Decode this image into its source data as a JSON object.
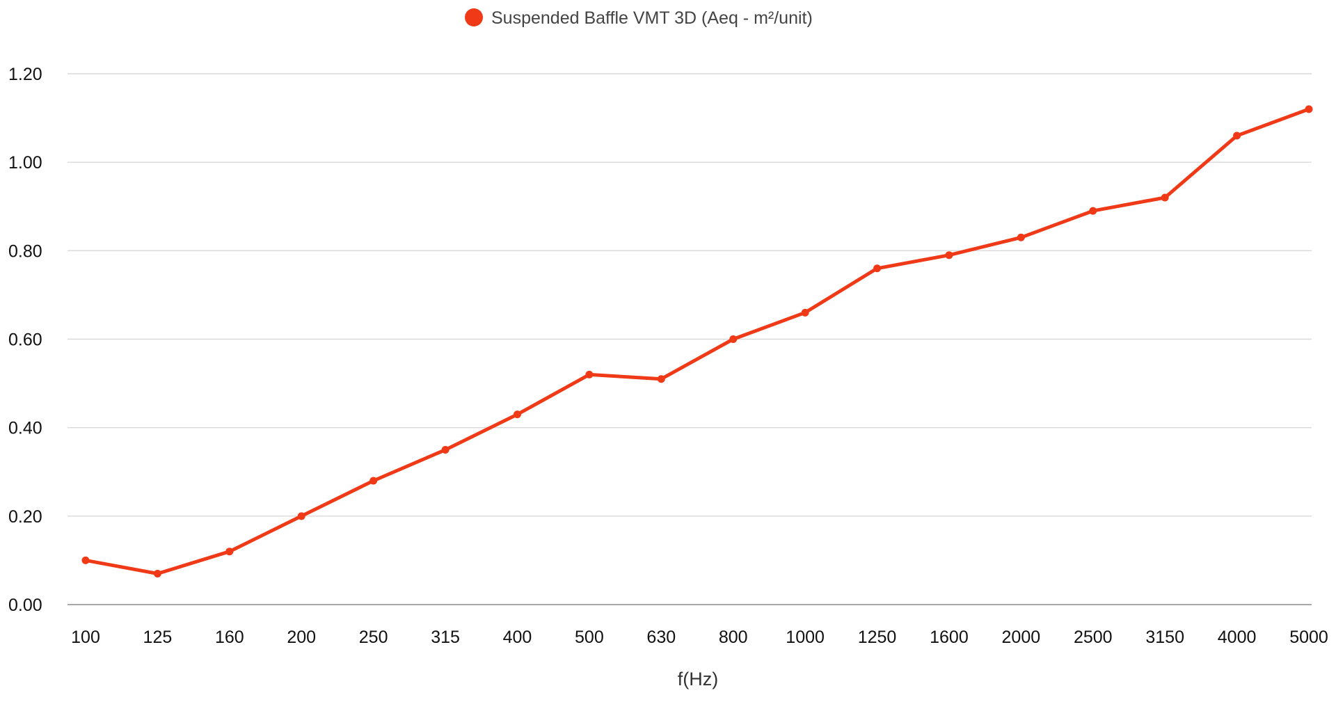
{
  "chart_data": {
    "type": "line",
    "title": "",
    "xlabel": "f(Hz)",
    "ylabel": "",
    "ylim": [
      0,
      1.2
    ],
    "y_ticks": [
      "0.00",
      "0.20",
      "0.40",
      "0.60",
      "0.80",
      "1.00",
      "1.20"
    ],
    "y_tick_values": [
      0,
      0.2,
      0.4,
      0.6,
      0.8,
      1.0,
      1.2
    ],
    "categories": [
      "100",
      "125",
      "160",
      "200",
      "250",
      "315",
      "400",
      "500",
      "630",
      "800",
      "1000",
      "1250",
      "1600",
      "2000",
      "2500",
      "3150",
      "4000",
      "5000"
    ],
    "grid": true,
    "legend_position": "top-center",
    "series": [
      {
        "name": "Suspended Baffle VMT 3D (Aeq - m²/unit)",
        "color": "#f03a17",
        "values": [
          0.1,
          0.07,
          0.12,
          0.2,
          0.28,
          0.35,
          0.43,
          0.52,
          0.51,
          0.6,
          0.66,
          0.76,
          0.79,
          0.83,
          0.89,
          0.92,
          1.06,
          1.12
        ]
      }
    ]
  }
}
